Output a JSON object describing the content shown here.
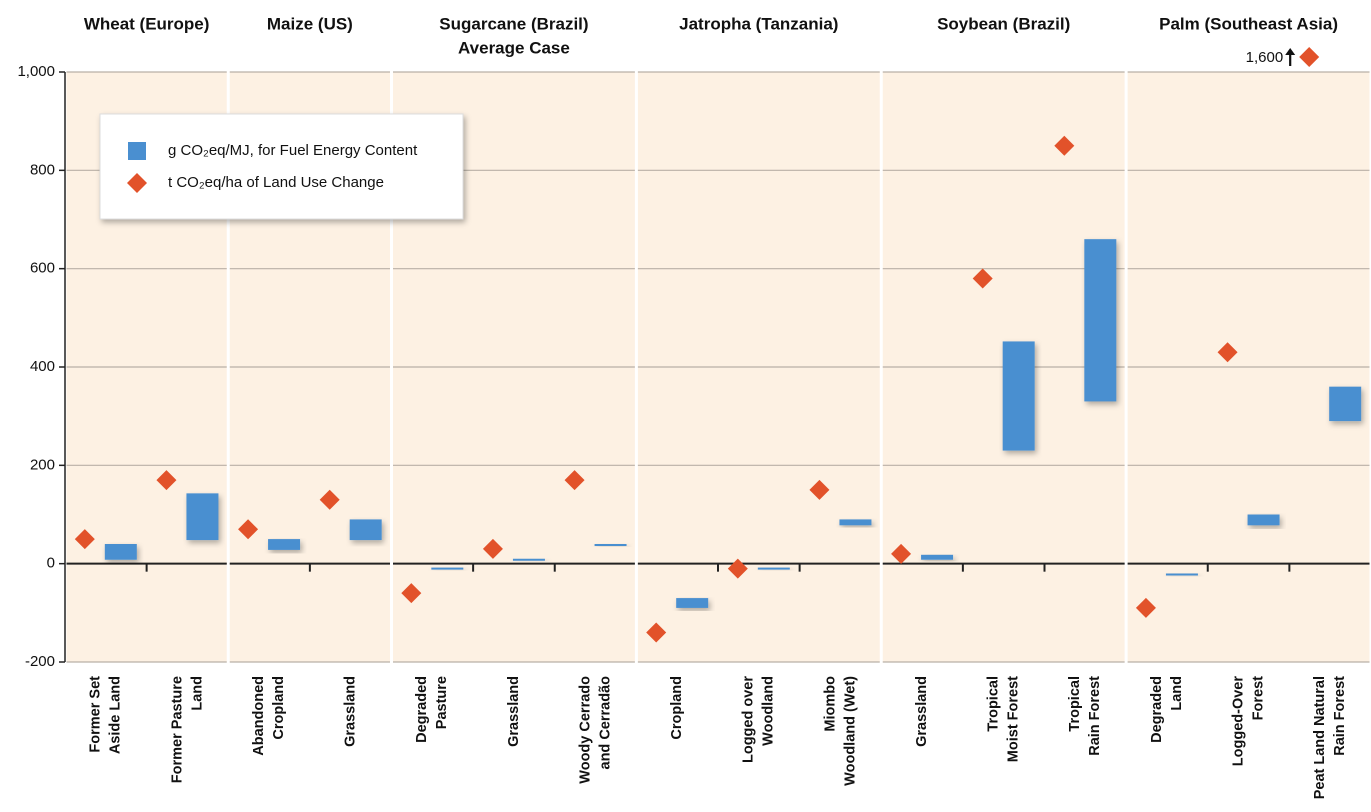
{
  "chart_data": {
    "type": "range-bar",
    "ylim": [
      -200,
      1000
    ],
    "yticks": [
      -200,
      0,
      200,
      400,
      600,
      800,
      {
        "value": 1000,
        "label": "1,000"
      }
    ],
    "grid": true,
    "bar_color": "#4a8fd0",
    "diamond_color": "#e2522a",
    "panel_color": "#fdf1e3",
    "legend": {
      "position": "upper-left",
      "bar": "g CO₂eq/MJ, for Fuel Energy Content",
      "diamond": "t CO₂eq/ha of Land Use Change"
    },
    "panels": [
      {
        "title": [
          "Wheat (Europe)"
        ],
        "categories": [
          [
            "Former Set",
            "Aside Land"
          ],
          [
            "Former Pasture",
            "Land"
          ]
        ],
        "low": [
          8,
          48
        ],
        "high": [
          40,
          143
        ],
        "land": [
          50,
          170
        ]
      },
      {
        "title": [
          "Maize (US)"
        ],
        "categories": [
          [
            "Abandoned",
            "Cropland"
          ],
          [
            "Grassland"
          ]
        ],
        "low": [
          28,
          48
        ],
        "high": [
          50,
          90
        ],
        "land": [
          70,
          130
        ]
      },
      {
        "title": [
          "Sugarcane (Brazil)",
          "Average Case"
        ],
        "categories": [
          [
            "Degraded",
            "Pasture"
          ],
          [
            "Grassland"
          ],
          [
            "Woody Cerrado",
            "and Cerradão"
          ]
        ],
        "low": [
          -12,
          6,
          36
        ],
        "high": [
          -8,
          10,
          40
        ],
        "land": [
          -60,
          30,
          170
        ]
      },
      {
        "title": [
          "Jatropha (Tanzania)"
        ],
        "categories": [
          [
            "Cropland"
          ],
          [
            "Logged over",
            "Woodland"
          ],
          [
            "Miombo",
            "Woodland (Wet)"
          ]
        ],
        "low": [
          -90,
          -12,
          78
        ],
        "high": [
          -70,
          -8,
          90
        ],
        "land": [
          -140,
          -10,
          150
        ]
      },
      {
        "title": [
          "Soybean (Brazil)"
        ],
        "categories": [
          [
            "Grassland"
          ],
          [
            "Tropical",
            "Moist Forest"
          ],
          [
            "Tropical",
            "Rain Forest"
          ]
        ],
        "low": [
          8,
          230,
          330
        ],
        "high": [
          18,
          452,
          660
        ],
        "land": [
          20,
          580,
          850
        ]
      },
      {
        "title": [
          "Palm (Southeast Asia)"
        ],
        "categories": [
          [
            "Degraded",
            "Land"
          ],
          [
            "Logged-Over",
            "Forest"
          ],
          [
            "Peat Land Natural",
            "Rain Forest"
          ]
        ],
        "low": [
          -22,
          78,
          290
        ],
        "high": [
          -20,
          100,
          360
        ],
        "land": [
          -90,
          430,
          1600
        ],
        "land_labels": [
          null,
          null,
          "1,600"
        ]
      }
    ]
  }
}
